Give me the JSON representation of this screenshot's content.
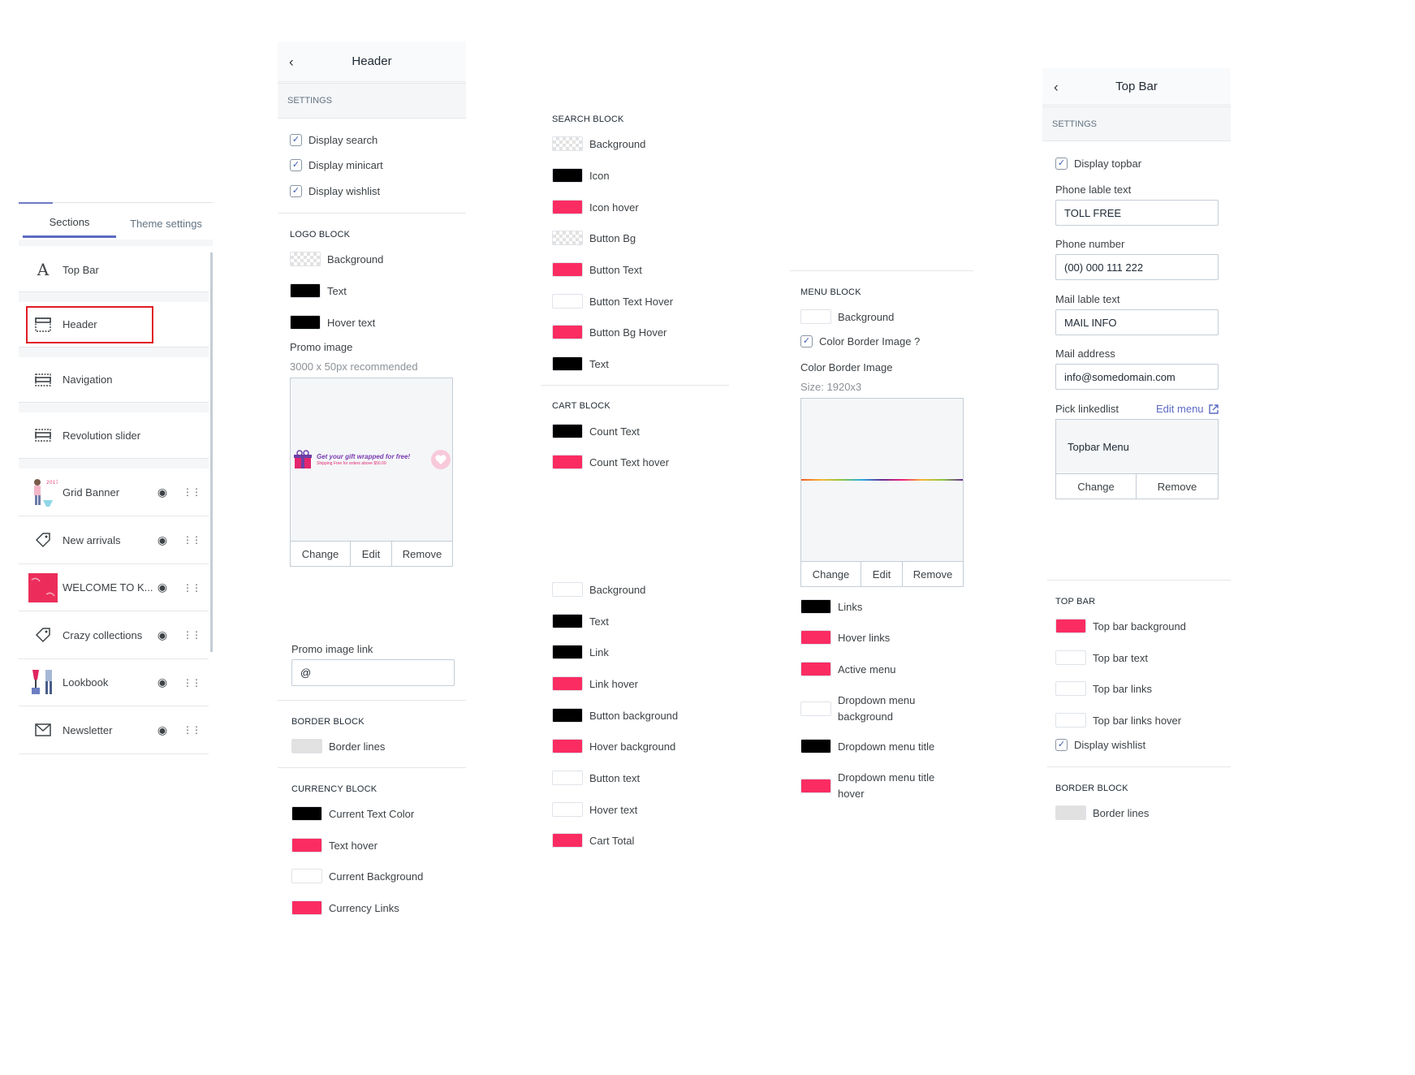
{
  "sidebar": {
    "tabs": [
      {
        "label": "Sections"
      },
      {
        "label": "Theme settings"
      }
    ],
    "items": [
      {
        "label": "Top Bar"
      },
      {
        "label": "Header"
      },
      {
        "label": "Navigation"
      },
      {
        "label": "Revolution slider"
      },
      {
        "label": "Grid Banner"
      },
      {
        "label": "New arrivals"
      },
      {
        "label": "WELCOME TO K..."
      },
      {
        "label": "Crazy collections"
      },
      {
        "label": "Lookbook"
      },
      {
        "label": "Newsletter"
      }
    ]
  },
  "header_panel": {
    "title": "Header",
    "settings_label": "SETTINGS",
    "checks": [
      {
        "label": "Display search",
        "checked": true
      },
      {
        "label": "Display minicart",
        "checked": true
      },
      {
        "label": "Display wishlist",
        "checked": true
      }
    ],
    "logo_block": {
      "title": "LOGO BLOCK",
      "swatches": [
        {
          "label": "Background",
          "color": "transparent"
        },
        {
          "label": "Text",
          "color": "#000000"
        },
        {
          "label": "Hover text",
          "color": "#000000"
        }
      ],
      "promo_label": "Promo image",
      "promo_hint": "3000 x 50px recommended",
      "promo_text": "Get your gift wrapped for free!",
      "promo_subtext": "Shipping Free for orders above $50.00",
      "buttons": [
        "Change",
        "Edit",
        "Remove"
      ],
      "promo_link_label": "Promo image link",
      "promo_link_value": "@"
    },
    "border_block": {
      "title": "BORDER BLOCK",
      "swatches": [
        {
          "label": "Border lines",
          "color": "#e1e1e1"
        }
      ]
    },
    "currency_block": {
      "title": "CURRENCY BLOCK",
      "swatches": [
        {
          "label": "Current Text Color",
          "color": "#000000"
        },
        {
          "label": "Text hover",
          "color": "#fb2c62"
        },
        {
          "label": "Current Background",
          "color": "#ffffff"
        },
        {
          "label": "Currency Links",
          "color": "#fb2c62"
        }
      ]
    }
  },
  "search_block": {
    "title": "SEARCH BLOCK",
    "swatches": [
      {
        "label": "Background",
        "color": "transparent"
      },
      {
        "label": "Icon",
        "color": "#000000"
      },
      {
        "label": "Icon hover",
        "color": "#fb2c62"
      },
      {
        "label": "Button Bg",
        "color": "transparent"
      },
      {
        "label": "Button Text",
        "color": "#fb2c62"
      },
      {
        "label": "Button Text Hover",
        "color": "#ffffff"
      },
      {
        "label": "Button Bg Hover",
        "color": "#fb2c62"
      },
      {
        "label": "Text",
        "color": "#000000"
      }
    ]
  },
  "cart_block": {
    "title": "CART BLOCK",
    "swatches": [
      {
        "label": "Count Text",
        "color": "#000000"
      },
      {
        "label": "Count Text hover",
        "color": "#fb2c62"
      }
    ],
    "more_swatches": [
      {
        "label": "Background",
        "color": "#ffffff"
      },
      {
        "label": "Text",
        "color": "#000000"
      },
      {
        "label": "Link",
        "color": "#000000"
      },
      {
        "label": "Link hover",
        "color": "#fb2c62"
      },
      {
        "label": "Button background",
        "color": "#000000"
      },
      {
        "label": "Hover background",
        "color": "#fb2c62"
      },
      {
        "label": "Button text",
        "color": "#ffffff"
      },
      {
        "label": "Hover text",
        "color": "#ffffff"
      },
      {
        "label": "Cart Total",
        "color": "#fb2c62"
      }
    ]
  },
  "menu_block": {
    "title": "MENU BLOCK",
    "background_label": "Background",
    "check_label": "Color Border Image ?",
    "image_label": "Color Border Image",
    "image_hint": "Size: 1920x3",
    "buttons": [
      "Change",
      "Edit",
      "Remove"
    ],
    "swatches": [
      {
        "label": "Links",
        "color": "#000000"
      },
      {
        "label": "Hover links",
        "color": "#fb2c62"
      },
      {
        "label": "Active menu",
        "color": "#fb2c62"
      },
      {
        "label": "Dropdown menu background",
        "color": "#ffffff"
      },
      {
        "label": "Dropdown menu title",
        "color": "#000000"
      },
      {
        "label": "Dropdown menu title hover",
        "color": "#fb2c62"
      }
    ]
  },
  "topbar_panel": {
    "title": "Top Bar",
    "settings_label": "SETTINGS",
    "display_topbar": "Display topbar",
    "phone_label": "Phone lable text",
    "phone_label_value": "TOLL FREE",
    "phone_number_label": "Phone number",
    "phone_number_value": "(00) 000 111 222",
    "mail_label": "Mail lable text",
    "mail_label_value": "MAIL INFO",
    "mail_address_label": "Mail address",
    "mail_address_value": "info@somedomain.com",
    "linklist_label": "Pick linkedlist",
    "edit_menu": "Edit menu",
    "menu_name": "Topbar Menu",
    "buttons": [
      "Change",
      "Remove"
    ],
    "topbar_block": {
      "title": "TOP BAR",
      "swatches": [
        {
          "label": "Top bar background",
          "color": "#fb2c62"
        },
        {
          "label": "Top bar text",
          "color": "#ffffff"
        },
        {
          "label": "Top bar links",
          "color": "#ffffff"
        },
        {
          "label": "Top bar links hover",
          "color": "#ffffff"
        }
      ],
      "wishlist_label": "Display wishlist"
    },
    "border_block": {
      "title": "BORDER BLOCK",
      "swatches": [
        {
          "label": "Border lines",
          "color": "#e1e1e1"
        }
      ]
    }
  }
}
